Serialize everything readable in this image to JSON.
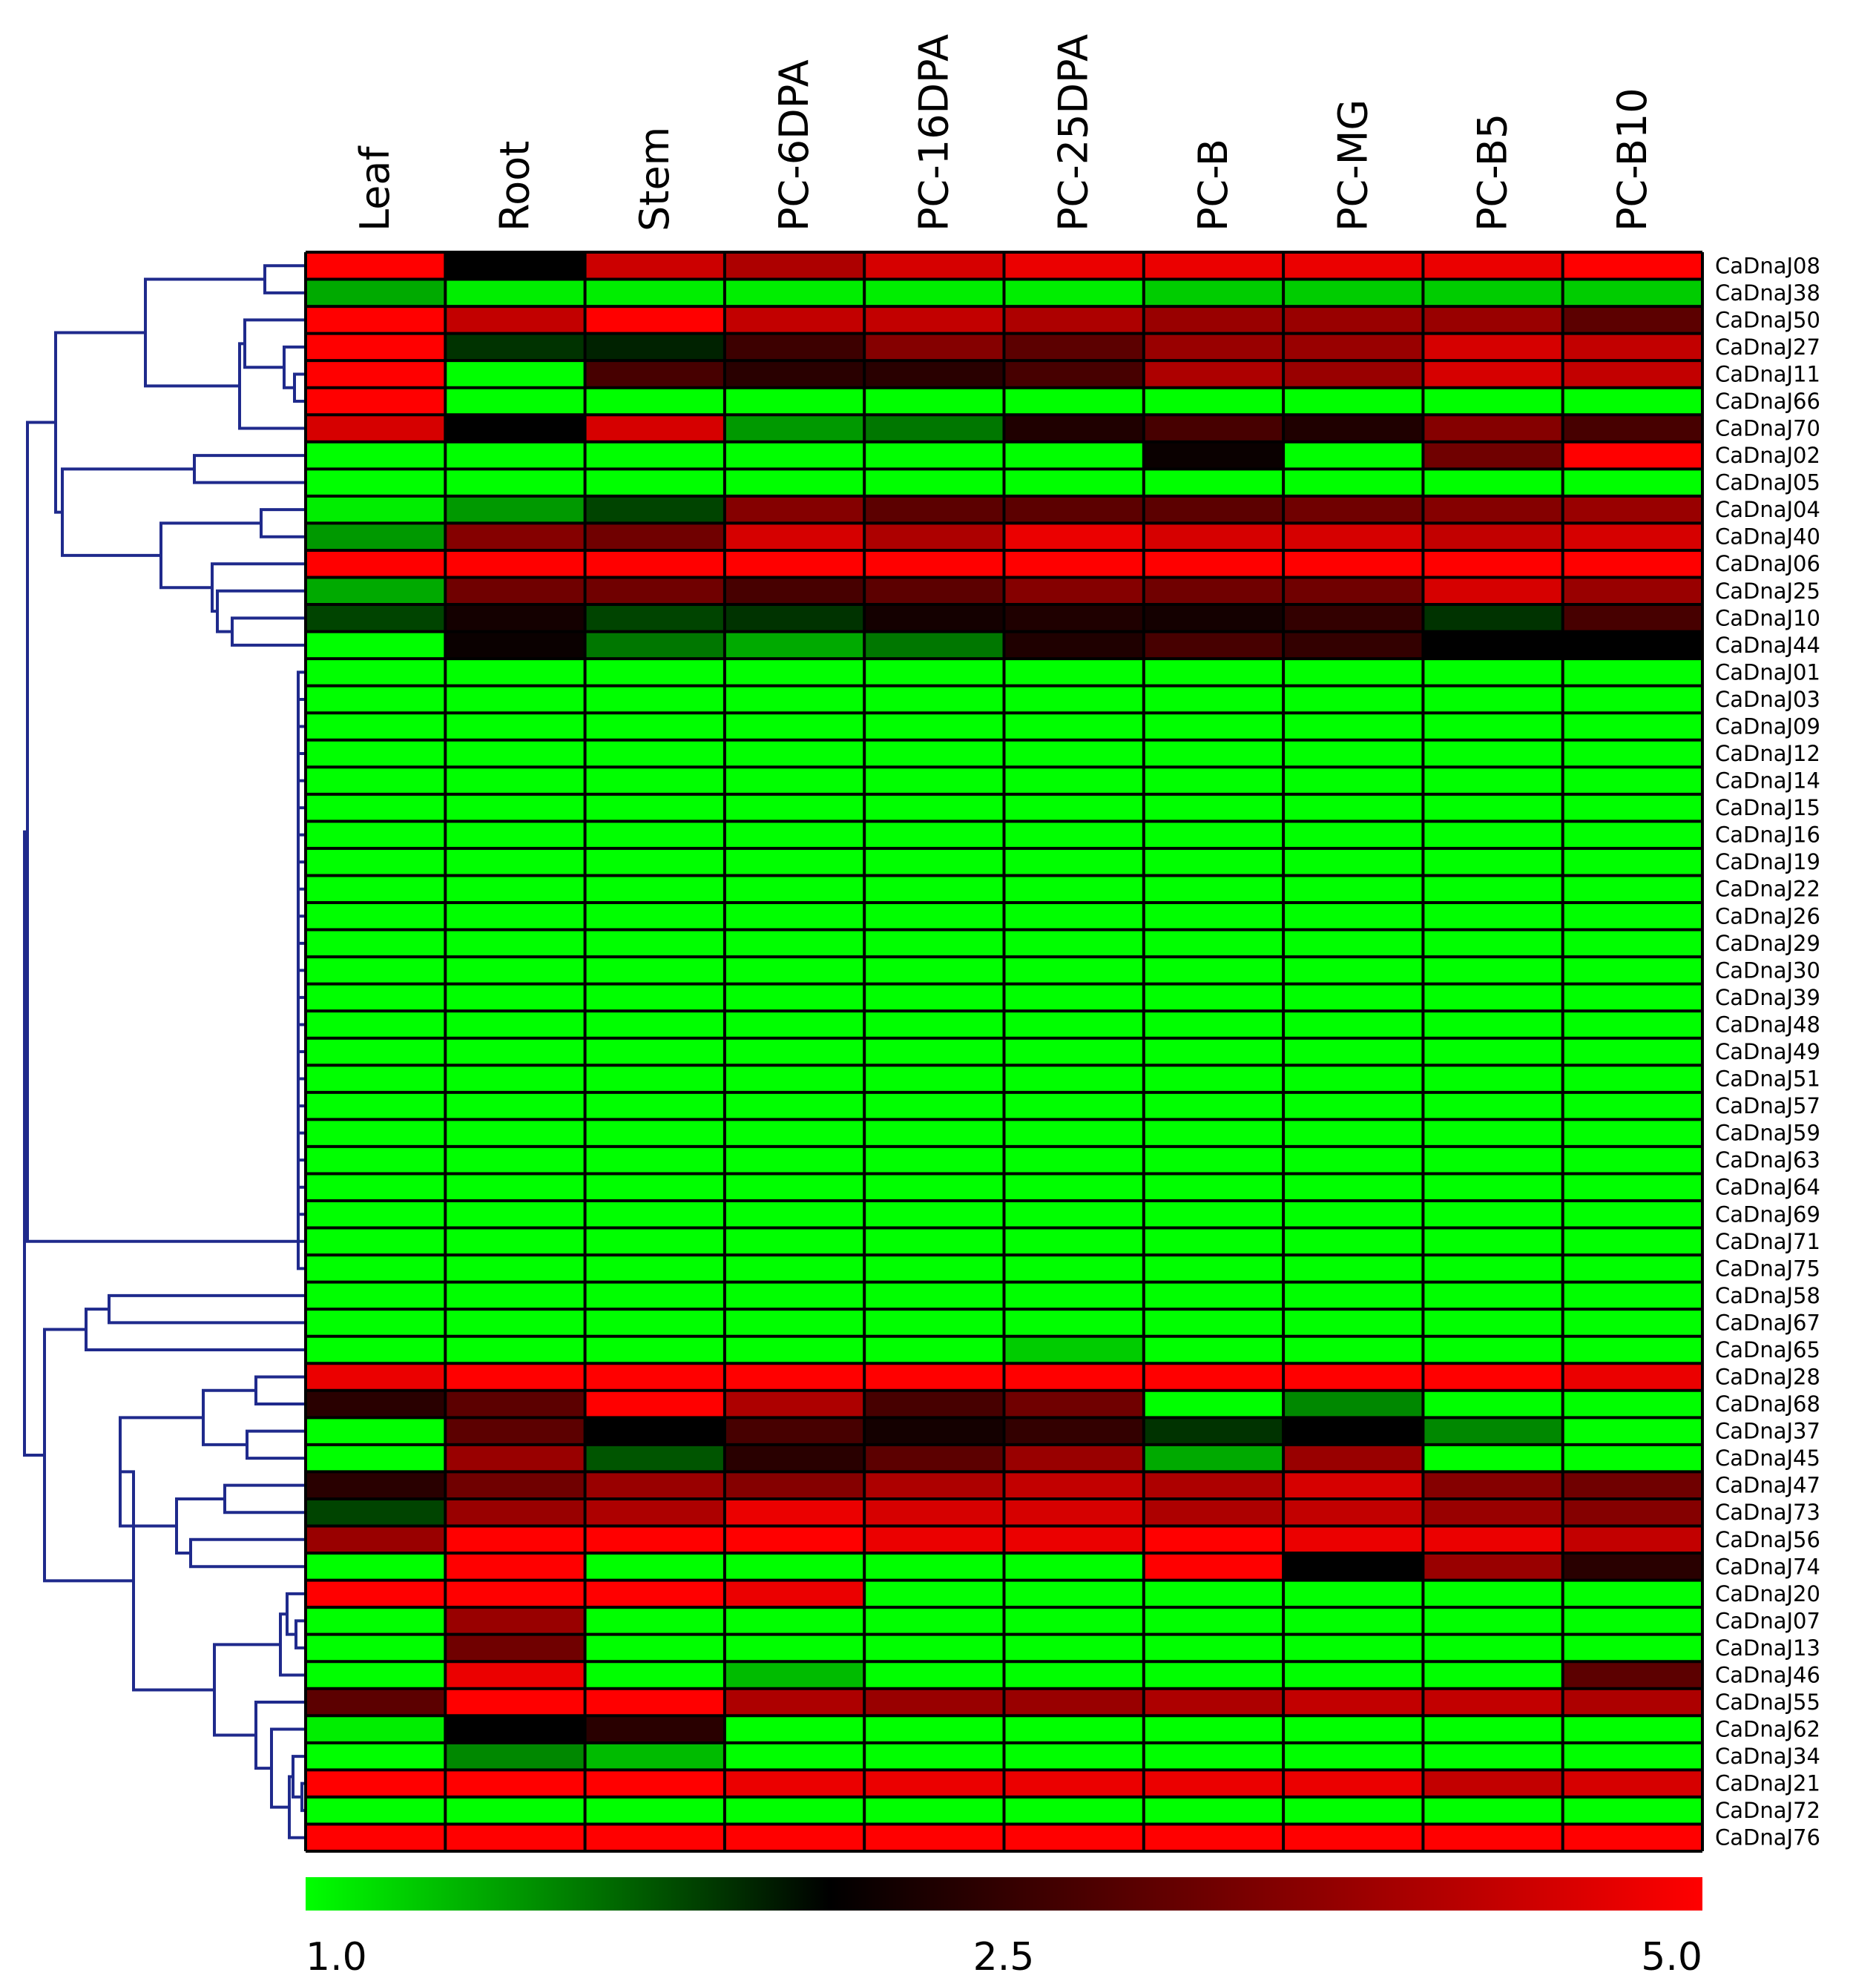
{
  "chart_data": {
    "type": "heatmap",
    "columns": [
      "Leaf",
      "Root",
      "Stem",
      "PC-6DPA",
      "PC-16DPA",
      "PC-25DPA",
      "PC-B",
      "PC-MG",
      "PC-B5",
      "PC-B10"
    ],
    "rows": [
      "CaDnaJ08",
      "CaDnaJ38",
      "CaDnaJ50",
      "CaDnaJ27",
      "CaDnaJ11",
      "CaDnaJ66",
      "CaDnaJ70",
      "CaDnaJ02",
      "CaDnaJ05",
      "CaDnaJ04",
      "CaDnaJ40",
      "CaDnaJ06",
      "CaDnaJ25",
      "CaDnaJ10",
      "CaDnaJ44",
      "CaDnaJ01",
      "CaDnaJ03",
      "CaDnaJ09",
      "CaDnaJ12",
      "CaDnaJ14",
      "CaDnaJ15",
      "CaDnaJ16",
      "CaDnaJ19",
      "CaDnaJ22",
      "CaDnaJ26",
      "CaDnaJ29",
      "CaDnaJ30",
      "CaDnaJ39",
      "CaDnaJ48",
      "CaDnaJ49",
      "CaDnaJ51",
      "CaDnaJ57",
      "CaDnaJ59",
      "CaDnaJ63",
      "CaDnaJ64",
      "CaDnaJ69",
      "CaDnaJ71",
      "CaDnaJ75",
      "CaDnaJ58",
      "CaDnaJ67",
      "CaDnaJ65",
      "CaDnaJ28",
      "CaDnaJ68",
      "CaDnaJ37",
      "CaDnaJ45",
      "CaDnaJ47",
      "CaDnaJ73",
      "CaDnaJ56",
      "CaDnaJ74",
      "CaDnaJ20",
      "CaDnaJ07",
      "CaDnaJ13",
      "CaDnaJ46",
      "CaDnaJ55",
      "CaDnaJ62",
      "CaDnaJ34",
      "CaDnaJ21",
      "CaDnaJ72",
      "CaDnaJ76"
    ],
    "values": [
      [
        5.0,
        2.5,
        4.5,
        4.2,
        4.6,
        4.8,
        4.8,
        4.8,
        4.8,
        5.0
      ],
      [
        1.5,
        1.1,
        1.1,
        1.1,
        1.1,
        1.1,
        1.3,
        1.3,
        1.3,
        1.3
      ],
      [
        5.0,
        4.4,
        5.0,
        4.4,
        4.4,
        4.2,
        4.0,
        4.0,
        4.0,
        3.4
      ],
      [
        5.0,
        2.2,
        2.3,
        3.1,
        3.8,
        3.4,
        4.0,
        4.0,
        4.6,
        4.4
      ],
      [
        5.0,
        1.0,
        3.2,
        2.9,
        2.9,
        3.2,
        4.2,
        4.0,
        4.6,
        4.4
      ],
      [
        5.0,
        1.0,
        1.0,
        1.0,
        1.0,
        1.0,
        1.0,
        1.0,
        1.0,
        1.0
      ],
      [
        4.6,
        2.5,
        4.6,
        1.6,
        1.8,
        2.8,
        3.2,
        2.8,
        3.8,
        3.2
      ],
      [
        1.0,
        1.0,
        1.0,
        1.0,
        1.0,
        1.0,
        2.6,
        1.0,
        3.6,
        5.0
      ],
      [
        1.0,
        1.0,
        1.0,
        1.0,
        1.0,
        1.0,
        1.0,
        1.0,
        1.0,
        1.0
      ],
      [
        1.1,
        1.6,
        2.1,
        3.8,
        3.4,
        3.4,
        3.4,
        3.6,
        3.8,
        4.0
      ],
      [
        1.6,
        3.8,
        3.6,
        4.6,
        4.2,
        4.8,
        4.6,
        4.6,
        4.4,
        4.6
      ],
      [
        5.0,
        5.0,
        5.0,
        5.0,
        5.0,
        5.0,
        5.0,
        5.0,
        5.0,
        5.0
      ],
      [
        1.5,
        3.6,
        3.6,
        3.2,
        3.4,
        3.8,
        3.6,
        3.6,
        4.6,
        4.0
      ],
      [
        2.1,
        2.7,
        2.1,
        2.2,
        2.7,
        2.8,
        2.7,
        3.0,
        2.2,
        3.2
      ],
      [
        1.0,
        2.6,
        1.8,
        1.5,
        1.8,
        2.8,
        3.2,
        3.0,
        2.5,
        2.5
      ],
      [
        1.0,
        1.0,
        1.0,
        1.0,
        1.0,
        1.0,
        1.0,
        1.0,
        1.0,
        1.0
      ],
      [
        1.0,
        1.0,
        1.0,
        1.0,
        1.0,
        1.0,
        1.0,
        1.0,
        1.0,
        1.0
      ],
      [
        1.0,
        1.0,
        1.0,
        1.0,
        1.0,
        1.0,
        1.0,
        1.0,
        1.0,
        1.0
      ],
      [
        1.0,
        1.0,
        1.0,
        1.0,
        1.0,
        1.0,
        1.0,
        1.0,
        1.0,
        1.0
      ],
      [
        1.0,
        1.0,
        1.0,
        1.0,
        1.0,
        1.0,
        1.0,
        1.0,
        1.0,
        1.0
      ],
      [
        1.0,
        1.0,
        1.0,
        1.0,
        1.0,
        1.0,
        1.0,
        1.0,
        1.0,
        1.0
      ],
      [
        1.0,
        1.0,
        1.0,
        1.0,
        1.0,
        1.0,
        1.0,
        1.0,
        1.0,
        1.0
      ],
      [
        1.0,
        1.0,
        1.0,
        1.0,
        1.0,
        1.0,
        1.0,
        1.0,
        1.0,
        1.0
      ],
      [
        1.0,
        1.0,
        1.0,
        1.0,
        1.0,
        1.0,
        1.0,
        1.0,
        1.0,
        1.0
      ],
      [
        1.0,
        1.0,
        1.0,
        1.0,
        1.0,
        1.0,
        1.0,
        1.0,
        1.0,
        1.0
      ],
      [
        1.0,
        1.0,
        1.0,
        1.0,
        1.0,
        1.0,
        1.0,
        1.0,
        1.0,
        1.0
      ],
      [
        1.0,
        1.0,
        1.0,
        1.0,
        1.0,
        1.0,
        1.0,
        1.0,
        1.0,
        1.0
      ],
      [
        1.0,
        1.0,
        1.0,
        1.0,
        1.0,
        1.0,
        1.0,
        1.0,
        1.0,
        1.0
      ],
      [
        1.0,
        1.0,
        1.0,
        1.0,
        1.0,
        1.0,
        1.0,
        1.0,
        1.0,
        1.0
      ],
      [
        1.0,
        1.0,
        1.0,
        1.0,
        1.0,
        1.0,
        1.0,
        1.0,
        1.0,
        1.0
      ],
      [
        1.0,
        1.0,
        1.0,
        1.0,
        1.0,
        1.0,
        1.0,
        1.0,
        1.0,
        1.0
      ],
      [
        1.0,
        1.0,
        1.0,
        1.0,
        1.0,
        1.0,
        1.0,
        1.0,
        1.0,
        1.0
      ],
      [
        1.0,
        1.0,
        1.0,
        1.0,
        1.0,
        1.0,
        1.0,
        1.0,
        1.0,
        1.0
      ],
      [
        1.0,
        1.0,
        1.0,
        1.0,
        1.0,
        1.0,
        1.0,
        1.0,
        1.0,
        1.0
      ],
      [
        1.0,
        1.0,
        1.0,
        1.0,
        1.0,
        1.0,
        1.0,
        1.0,
        1.0,
        1.0
      ],
      [
        1.0,
        1.0,
        1.0,
        1.0,
        1.0,
        1.0,
        1.0,
        1.0,
        1.0,
        1.0
      ],
      [
        1.0,
        1.0,
        1.0,
        1.0,
        1.0,
        1.0,
        1.0,
        1.0,
        1.0,
        1.0
      ],
      [
        1.0,
        1.0,
        1.0,
        1.0,
        1.0,
        1.0,
        1.0,
        1.0,
        1.0,
        1.0
      ],
      [
        1.0,
        1.0,
        1.0,
        1.0,
        1.0,
        1.0,
        1.0,
        1.0,
        1.0,
        1.0
      ],
      [
        1.0,
        1.0,
        1.0,
        1.0,
        1.0,
        1.0,
        1.0,
        1.0,
        1.0,
        1.0
      ],
      [
        1.0,
        1.0,
        1.0,
        1.0,
        1.0,
        1.3,
        1.0,
        1.0,
        1.0,
        1.0
      ],
      [
        4.8,
        5.0,
        5.0,
        5.0,
        5.0,
        5.0,
        5.0,
        5.0,
        5.0,
        4.8
      ],
      [
        2.9,
        3.4,
        5.0,
        4.2,
        3.2,
        3.6,
        1.0,
        1.7,
        1.0,
        1.0
      ],
      [
        1.0,
        3.4,
        2.5,
        3.2,
        2.7,
        3.0,
        2.2,
        2.5,
        1.7,
        1.0
      ],
      [
        1.0,
        4.0,
        2.0,
        2.9,
        3.4,
        4.0,
        1.5,
        4.0,
        1.0,
        1.0
      ],
      [
        2.9,
        3.6,
        4.0,
        3.8,
        4.2,
        4.4,
        4.2,
        4.6,
        3.8,
        3.6
      ],
      [
        2.1,
        4.0,
        4.2,
        4.8,
        4.6,
        4.6,
        4.2,
        4.4,
        4.0,
        3.8
      ],
      [
        4.0,
        5.0,
        5.0,
        5.0,
        4.8,
        4.8,
        5.0,
        4.8,
        4.8,
        4.4
      ],
      [
        1.0,
        5.0,
        1.0,
        1.0,
        1.0,
        1.0,
        5.0,
        2.5,
        4.0,
        2.9
      ],
      [
        5.0,
        5.0,
        5.0,
        4.8,
        1.0,
        1.0,
        1.0,
        1.0,
        1.0,
        1.0
      ],
      [
        1.0,
        4.0,
        1.0,
        1.0,
        1.0,
        1.0,
        1.0,
        1.0,
        1.0,
        1.0
      ],
      [
        1.0,
        3.6,
        1.0,
        1.0,
        1.0,
        1.0,
        1.0,
        1.0,
        1.0,
        1.0
      ],
      [
        1.0,
        4.8,
        1.0,
        1.4,
        1.0,
        1.0,
        1.0,
        1.0,
        1.0,
        3.4
      ],
      [
        3.4,
        5.0,
        5.0,
        4.2,
        4.0,
        4.0,
        4.2,
        4.4,
        4.4,
        4.2
      ],
      [
        1.1,
        2.5,
        2.9,
        1.0,
        1.0,
        1.0,
        1.0,
        1.0,
        1.0,
        1.0
      ],
      [
        1.0,
        1.7,
        1.4,
        1.0,
        1.0,
        1.0,
        1.0,
        1.0,
        1.0,
        1.0
      ],
      [
        5.0,
        5.0,
        5.0,
        4.8,
        4.8,
        4.8,
        4.8,
        4.8,
        4.4,
        4.6
      ],
      [
        1.0,
        1.0,
        1.0,
        1.0,
        1.0,
        1.0,
        1.0,
        1.0,
        1.0,
        1.0
      ],
      [
        5.0,
        5.0,
        5.0,
        5.0,
        5.0,
        5.0,
        5.0,
        5.0,
        5.0,
        5.0
      ]
    ],
    "color_scale": {
      "min": 1.0,
      "mid": 2.5,
      "max": 5.0,
      "min_color": "#00ff00",
      "mid_color": "#000000",
      "max_color": "#ff0000",
      "tick_labels": [
        "1.0",
        "2.5",
        "5.0"
      ]
    },
    "dendrogram": {
      "side": "left",
      "color": "#1f2a8c"
    },
    "title": "",
    "xlabel": "",
    "ylabel": ""
  }
}
